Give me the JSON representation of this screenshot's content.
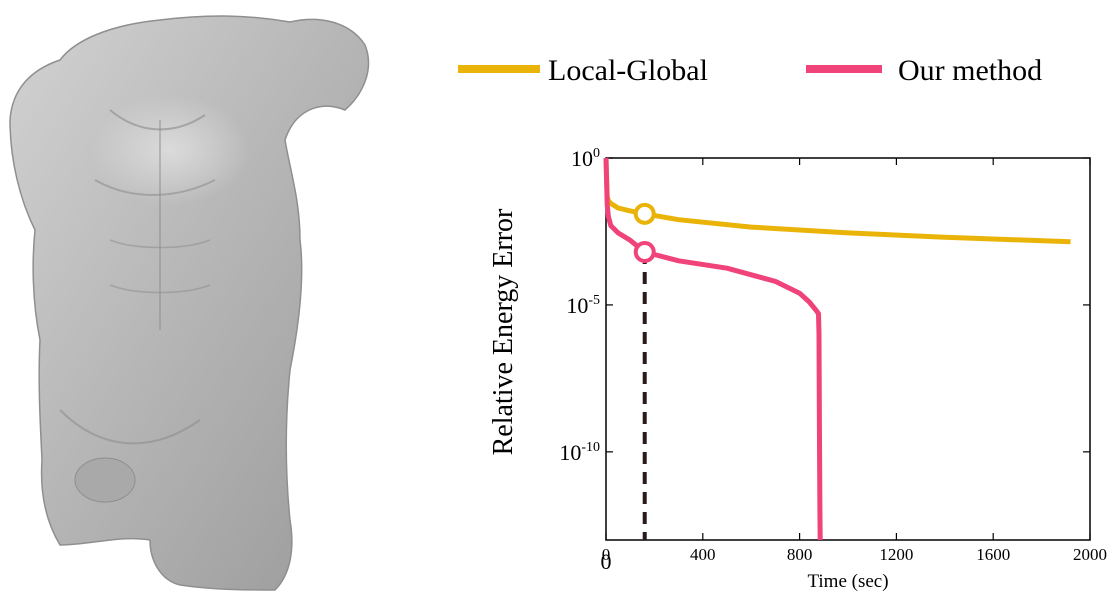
{
  "figure": {
    "mesh": {
      "name": "torso-sculpture"
    }
  },
  "chart_data": {
    "type": "line",
    "title": "",
    "xlabel": "Time (sec)",
    "ylabel": "Relative Energy Error",
    "xlim": [
      0,
      2000
    ],
    "ylim_log10": [
      -13,
      0
    ],
    "x_ticks": [
      0,
      400,
      800,
      1200,
      1600,
      2000
    ],
    "x_tick_labels": [
      "0",
      "400",
      "800",
      "1200",
      "1600",
      "2000"
    ],
    "y_ticks_log10": [
      0,
      -5,
      -10
    ],
    "y_tick_labels": [
      {
        "base": "10",
        "exp": "0"
      },
      {
        "base": "10",
        "exp": "-5"
      },
      {
        "base": "10",
        "exp": "-10"
      }
    ],
    "extra_label": "0",
    "legend": [
      {
        "name": "Local-Global",
        "color": "#EAB308"
      },
      {
        "name": "Our method",
        "color": "#F0437A"
      }
    ],
    "series": [
      {
        "name": "Local-Global",
        "color": "#EAB308",
        "x": [
          0,
          5,
          10,
          20,
          50,
          100,
          160,
          300,
          600,
          1000,
          1400,
          1920
        ],
        "log10y": [
          0,
          -1.3,
          -1.45,
          -1.55,
          -1.7,
          -1.8,
          -1.9,
          -2.1,
          -2.35,
          -2.55,
          -2.7,
          -2.85
        ]
      },
      {
        "name": "Our method",
        "color": "#F0437A",
        "x": [
          0,
          5,
          10,
          20,
          50,
          100,
          160,
          300,
          500,
          700,
          800,
          840,
          870,
          878,
          880,
          882,
          884,
          885
        ],
        "log10y": [
          0,
          -1.6,
          -2.0,
          -2.3,
          -2.55,
          -2.8,
          -3.2,
          -3.5,
          -3.75,
          -4.2,
          -4.6,
          -4.9,
          -5.2,
          -5.3,
          -6.0,
          -9.0,
          -12.0,
          -13
        ]
      }
    ],
    "markers": [
      {
        "series": "Local-Global",
        "x": 160,
        "log10y": -1.9
      },
      {
        "series": "Our method",
        "x": 160,
        "log10y": -3.2
      }
    ],
    "guide_line": {
      "x": 160,
      "style": "dashed"
    },
    "grid": false
  }
}
